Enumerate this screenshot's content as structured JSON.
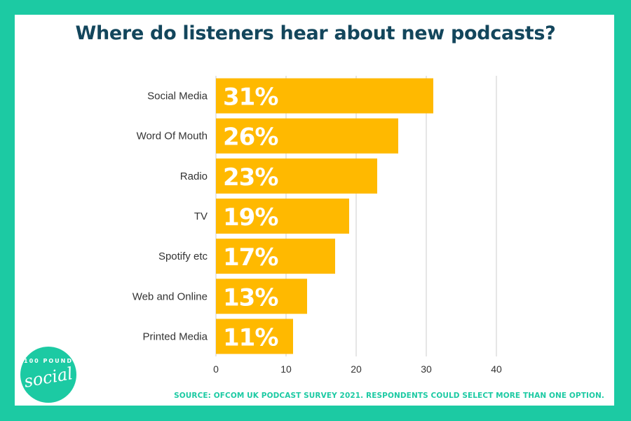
{
  "chart_data": {
    "type": "bar",
    "orientation": "horizontal",
    "title": "Where do listeners hear about new podcasts?",
    "categories": [
      "Social Media",
      "Word Of Mouth",
      "Radio",
      "TV",
      "Spotify etc",
      "Web and Online",
      "Printed Media"
    ],
    "values": [
      31,
      26,
      23,
      19,
      17,
      13,
      11
    ],
    "data_labels": [
      "31%",
      "26%",
      "23%",
      "19%",
      "17%",
      "13%",
      "11%"
    ],
    "xlim": [
      0,
      40
    ],
    "xticks": [
      "0",
      "10",
      "20",
      "30",
      "40"
    ],
    "xlabel": "",
    "ylabel": "",
    "grid": true
  },
  "source_note": "SOURCE: OFCOM UK PODCAST SURVEY 2021. RESPONDENTS COULD SELECT MORE THAN ONE OPTION.",
  "logo": {
    "top_text": "100 POUND",
    "word": "social"
  },
  "colors": {
    "frame": "#1ccaa3",
    "bar": "#ffb900",
    "title": "#13465c",
    "grid": "#cccccc",
    "label": "#333333"
  }
}
